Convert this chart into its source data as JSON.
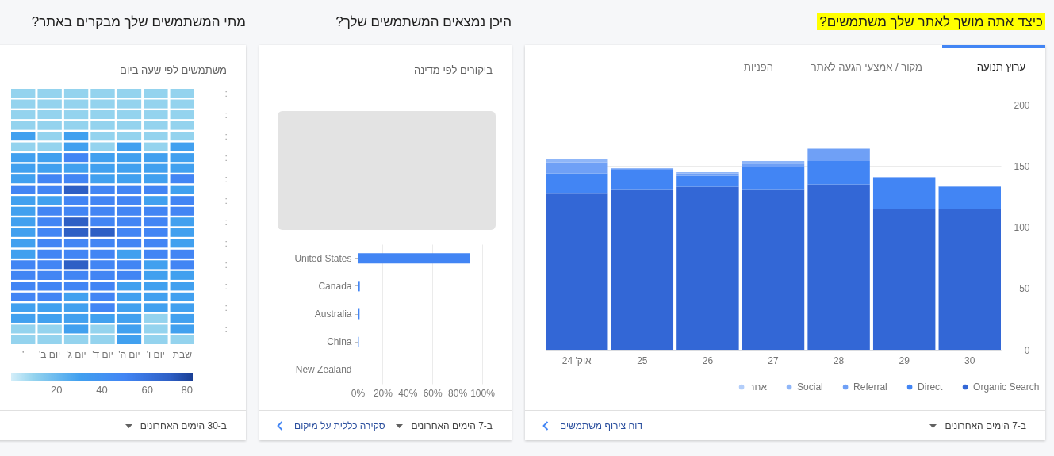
{
  "chart_data": [
    {
      "type": "bar",
      "title": "כיצד אתה מושך לאתר שלך משתמשים?",
      "categories": [
        "אוק' 24",
        "25",
        "26",
        "27",
        "28",
        "29",
        "30"
      ],
      "stacked": true,
      "series": [
        {
          "name": "Organic Search",
          "color": "#3367d6",
          "values": [
            128,
            131,
            133,
            131,
            135,
            115,
            115
          ]
        },
        {
          "name": "Direct",
          "color": "#4285f4",
          "values": [
            16,
            16,
            9,
            18,
            19,
            25,
            18
          ]
        },
        {
          "name": "Referral",
          "color": "#6fa0f6",
          "values": [
            9,
            1,
            2,
            3,
            10,
            1,
            1
          ]
        },
        {
          "name": "Social",
          "color": "#8fb6f8",
          "values": [
            3,
            null,
            1,
            2,
            null,
            null,
            null
          ]
        },
        {
          "name": "אחר",
          "color": "#b3cefa",
          "values": [
            null,
            null,
            null,
            null,
            null,
            null,
            null
          ]
        }
      ],
      "ylim": [
        0,
        200
      ],
      "yticks": [
        0,
        50,
        100,
        150,
        200
      ],
      "grid": "y",
      "legend": "bottom right",
      "annotations": [
        "ערוץ תנועה",
        "מקור / אמצעי הגעה לאתר",
        "הפניות",
        "ב-7 הימים האחרונים",
        "דוח צירוף משתמשים"
      ]
    },
    {
      "type": "bar",
      "orientation": "horizontal",
      "title": "היכן נמצאים המשתמשים שלך?",
      "subtitle": "ביקורים לפי מדינה",
      "categories": [
        "United States",
        "Canada",
        "Australia",
        "China",
        "New Zealand"
      ],
      "values": [
        90,
        1.7,
        1.5,
        0.9,
        0.5
      ],
      "color": "#4285f4",
      "xlim": [
        0,
        100
      ],
      "xticks": [
        {
          "value": 0,
          "label": "0%"
        },
        {
          "value": 20,
          "label": "20%"
        },
        {
          "value": 40,
          "label": "40%"
        },
        {
          "value": 60,
          "label": "60%"
        },
        {
          "value": 80,
          "label": "80%"
        },
        {
          "value": 100,
          "label": "100%"
        }
      ],
      "grid": "x",
      "annotations": [
        "ב-7 הימים האחרונים",
        "סקירה כללית על מיקום"
      ]
    },
    {
      "type": "heatmap",
      "title": "מתי המשתמשים שלך מבקרים באתר?",
      "subtitle": "משתמשים לפי שעה ביום",
      "categories": [
        "'",
        "יום ב'",
        "יום ג'",
        "יום ד'",
        "יום ה'",
        "יום ו'",
        "שבת"
      ],
      "y_categories": [
        ":",
        null,
        ":",
        null,
        ":",
        null,
        ":",
        null,
        ":",
        null,
        ":",
        null,
        ":",
        null,
        ":",
        null,
        ":",
        null,
        ":",
        null,
        ":",
        null,
        ":",
        null
      ],
      "cells": [
        [
          10,
          10,
          10,
          10,
          10,
          10,
          10
        ],
        [
          10,
          10,
          10,
          10,
          10,
          10,
          10
        ],
        [
          10,
          10,
          10,
          10,
          10,
          10,
          10
        ],
        [
          10,
          10,
          10,
          10,
          10,
          10,
          10
        ],
        [
          30,
          10,
          30,
          10,
          10,
          10,
          10
        ],
        [
          10,
          10,
          30,
          10,
          30,
          10,
          30
        ],
        [
          30,
          30,
          50,
          30,
          30,
          30,
          30
        ],
        [
          30,
          30,
          30,
          30,
          30,
          30,
          30
        ],
        [
          30,
          50,
          50,
          30,
          30,
          30,
          50
        ],
        [
          50,
          50,
          70,
          50,
          50,
          50,
          30
        ],
        [
          30,
          30,
          50,
          50,
          50,
          30,
          50
        ],
        [
          30,
          50,
          50,
          50,
          50,
          50,
          50
        ],
        [
          30,
          50,
          70,
          50,
          50,
          50,
          30
        ],
        [
          30,
          50,
          70,
          70,
          50,
          50,
          30
        ],
        [
          30,
          50,
          50,
          50,
          50,
          50,
          30
        ],
        [
          30,
          50,
          50,
          50,
          30,
          50,
          50
        ],
        [
          50,
          50,
          70,
          50,
          50,
          30,
          50
        ],
        [
          50,
          50,
          50,
          50,
          50,
          30,
          30
        ],
        [
          50,
          50,
          50,
          50,
          30,
          30,
          30
        ],
        [
          50,
          50,
          30,
          50,
          30,
          30,
          30
        ],
        [
          30,
          30,
          30,
          50,
          30,
          30,
          30
        ],
        [
          30,
          30,
          30,
          30,
          30,
          10,
          30
        ],
        [
          10,
          10,
          30,
          10,
          30,
          10,
          30
        ],
        [
          10,
          10,
          10,
          10,
          30,
          10,
          10
        ]
      ],
      "clim": [
        0,
        80
      ],
      "cticks": [
        20,
        40,
        60,
        80
      ],
      "annotations": [
        "ב-30 הימים האחרונים"
      ]
    }
  ]
}
